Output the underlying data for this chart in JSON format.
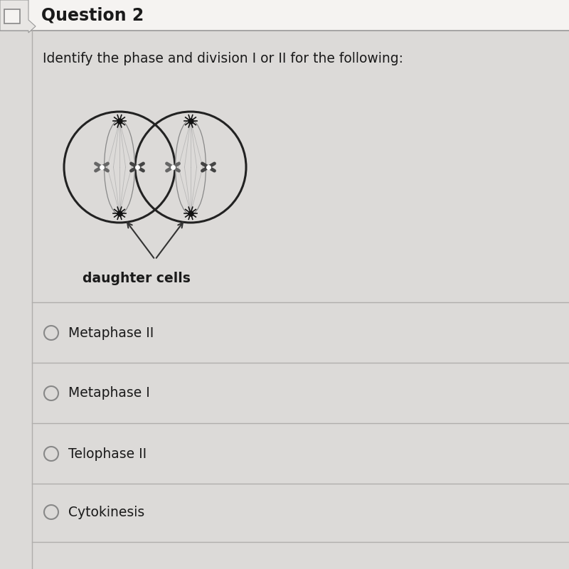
{
  "title": "Question 2",
  "question_text": "Identify the phase and division I or II for the following:",
  "diagram_label": "daughter cells",
  "options": [
    "Metaphase II",
    "Metaphase I",
    "Telophase II",
    "Cytokinesis"
  ],
  "bg_color": "#dcdad8",
  "header_bg": "#f5f3f1",
  "text_color": "#1a1a1a",
  "line_color": "#b0aeac",
  "header_line_color": "#999999"
}
